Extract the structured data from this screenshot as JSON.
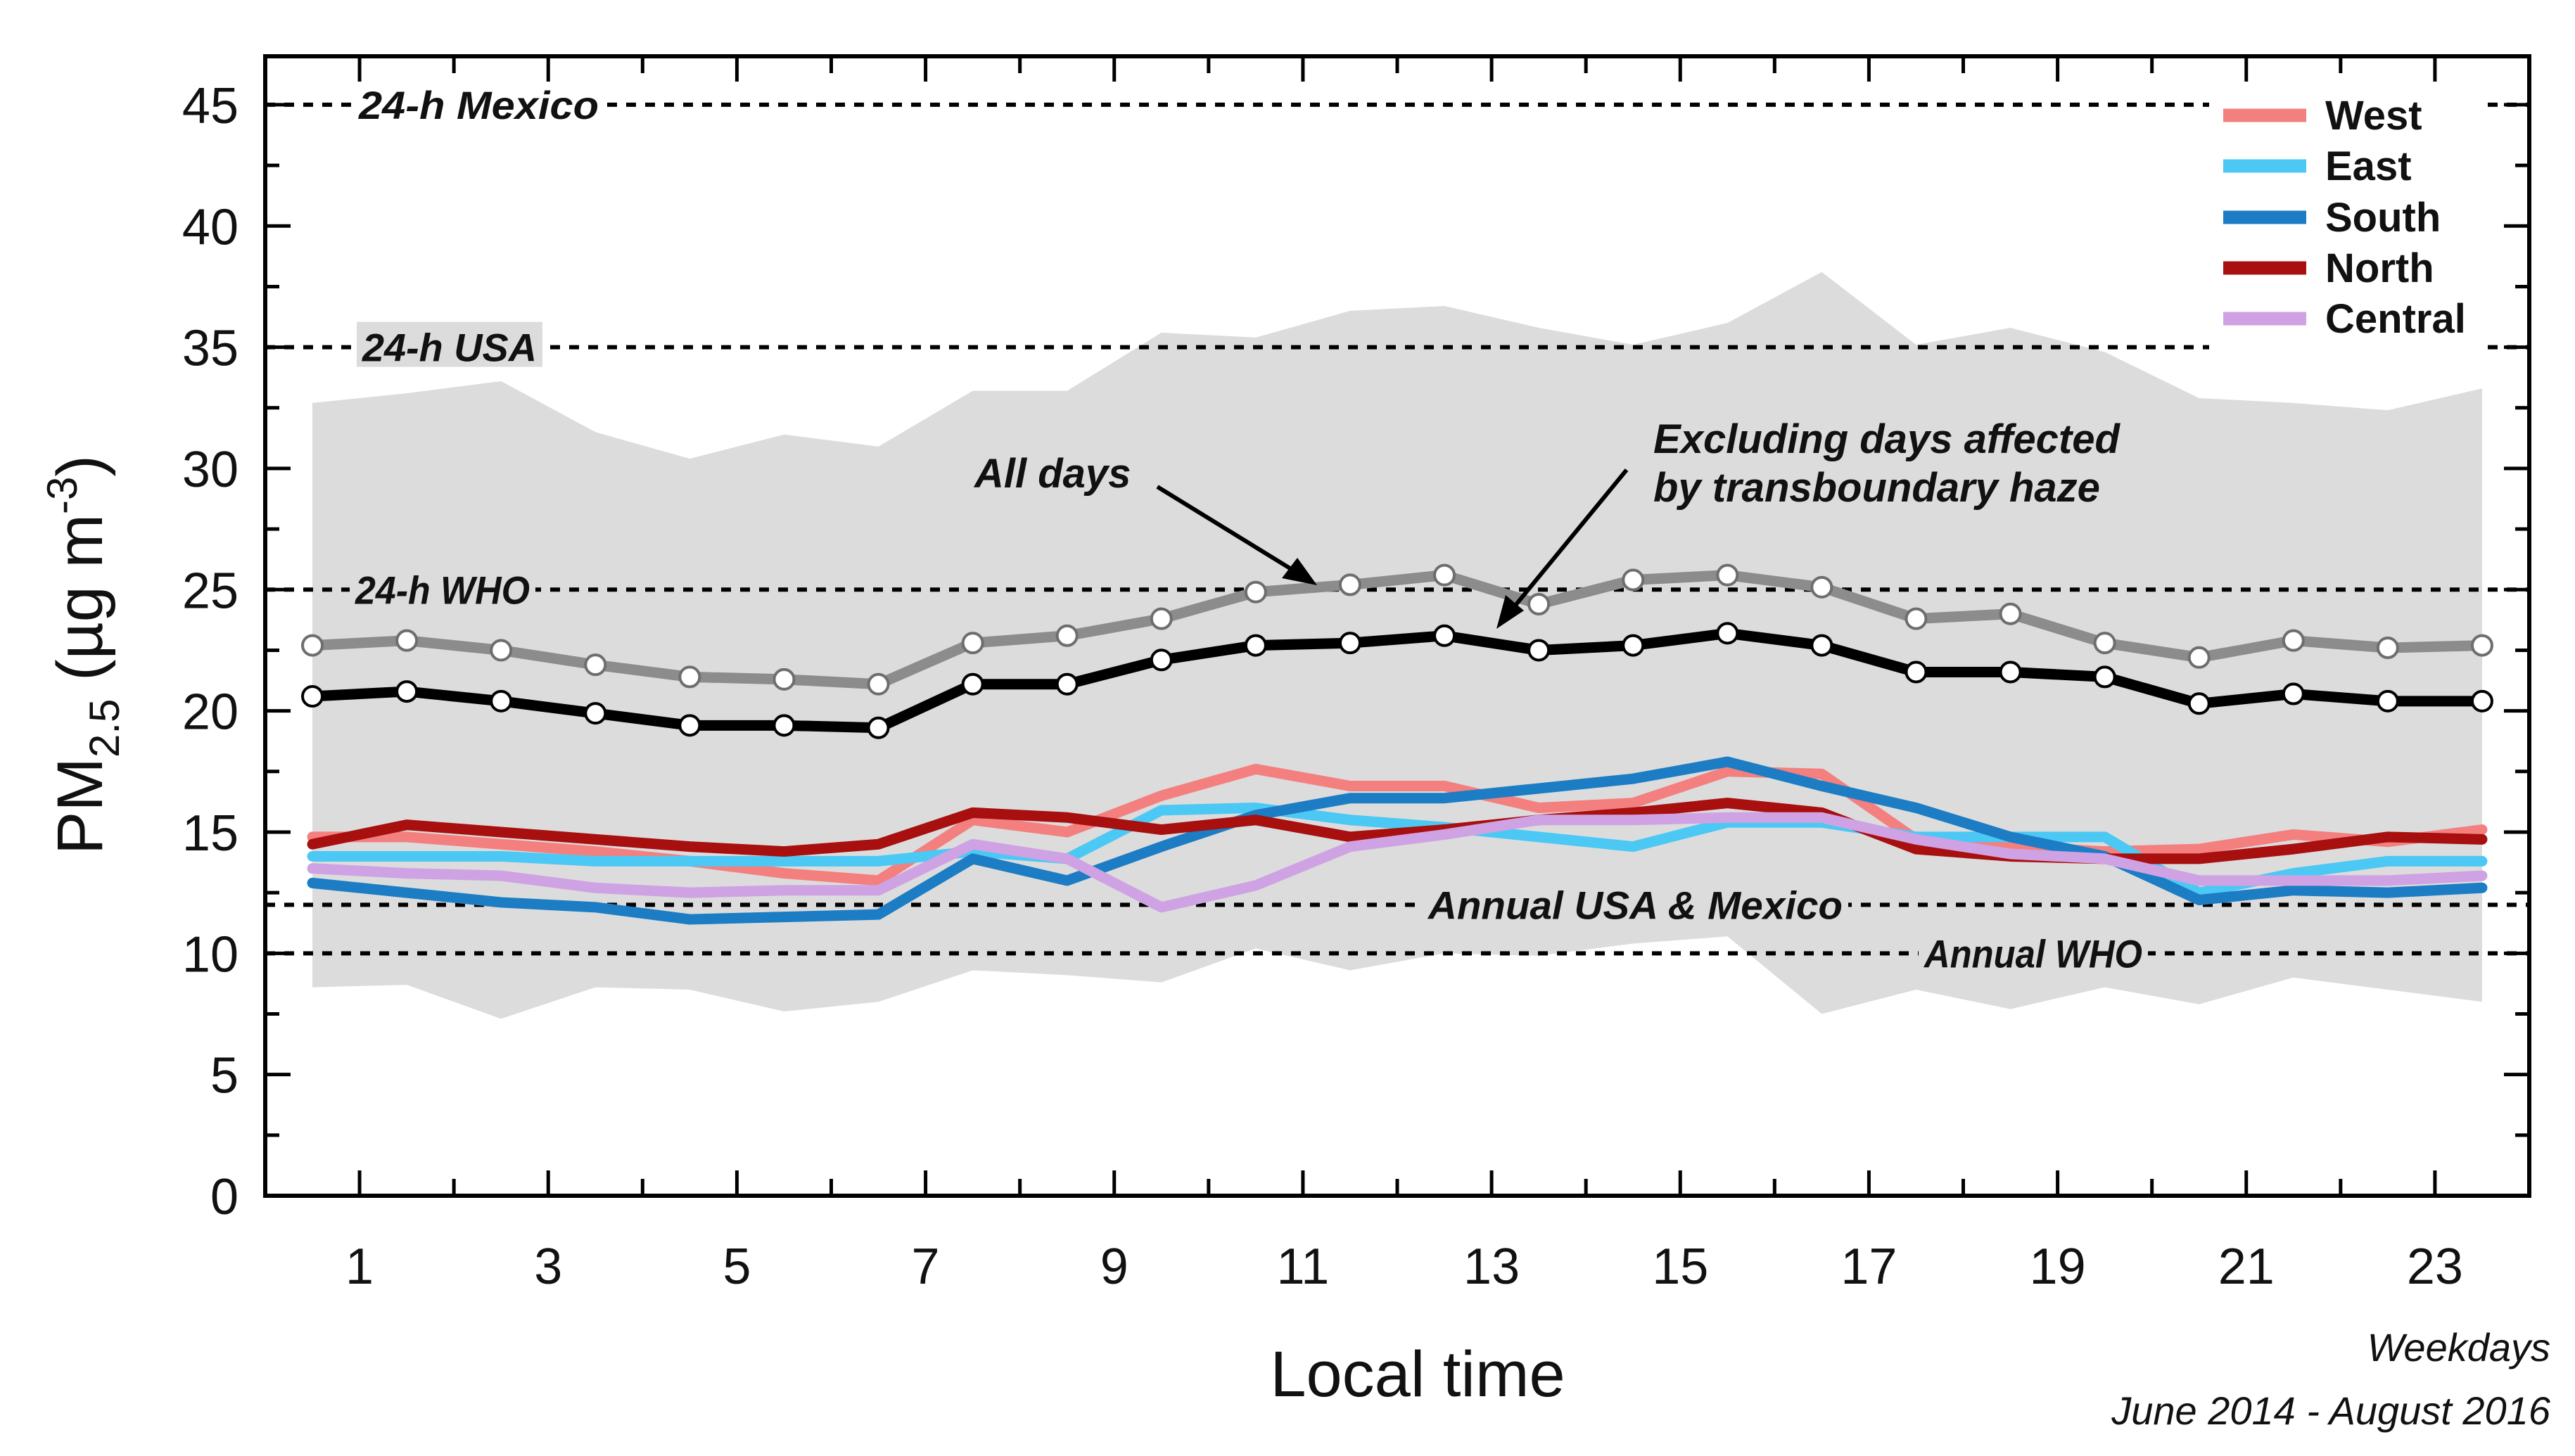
{
  "chart_data": {
    "type": "line",
    "xlabel": "Local time",
    "ylabel": "PM",
    "ylabel_sub": "2.5",
    "ylabel_unit": " (µg m",
    "ylabel_sup": "-3",
    "ylabel_close": ")",
    "xlim": [
      0,
      24
    ],
    "ylim": [
      0,
      47
    ],
    "x_ticks": [
      1,
      3,
      5,
      7,
      9,
      11,
      13,
      15,
      17,
      19,
      21,
      23
    ],
    "y_ticks": [
      0,
      5,
      10,
      15,
      20,
      25,
      30,
      35,
      40,
      45
    ],
    "x": [
      0.5,
      1.5,
      2.5,
      3.5,
      4.5,
      5.5,
      6.5,
      7.5,
      8.5,
      9.5,
      10.5,
      11.5,
      12.5,
      13.5,
      14.5,
      15.5,
      16.5,
      17.5,
      18.5,
      19.5,
      20.5,
      21.5,
      22.5,
      23.5
    ],
    "range_band": {
      "color": "#dcdcdc",
      "upper": [
        32.7,
        33.1,
        33.6,
        31.5,
        30.4,
        31.4,
        30.9,
        33.2,
        33.2,
        35.6,
        35.4,
        36.5,
        36.7,
        35.8,
        35.1,
        36.0,
        38.1,
        35.1,
        35.8,
        34.8,
        32.9,
        32.7,
        32.4,
        33.3
      ],
      "lower": [
        8.6,
        8.7,
        7.3,
        8.6,
        8.5,
        7.6,
        8.0,
        9.3,
        9.1,
        8.8,
        10.2,
        9.3,
        10.0,
        9.9,
        10.4,
        10.7,
        7.5,
        8.5,
        7.7,
        8.6,
        7.9,
        9.0,
        8.5,
        8.0
      ]
    },
    "reference_lines": [
      {
        "value": 45,
        "label": "24-h Mexico"
      },
      {
        "value": 35,
        "label": "24-h USA"
      },
      {
        "value": 25,
        "label": "24-h WHO"
      },
      {
        "value": 12,
        "label": "Annual USA & Mexico"
      },
      {
        "value": 10,
        "label": "Annual WHO"
      }
    ],
    "series": [
      {
        "name": "West",
        "color": "#f47f7f",
        "values": [
          14.8,
          14.8,
          14.5,
          14.2,
          13.8,
          13.3,
          13.0,
          15.5,
          15.0,
          16.5,
          17.6,
          16.9,
          16.9,
          16.0,
          16.2,
          17.5,
          17.4,
          14.7,
          14.4,
          14.2,
          14.3,
          14.9,
          14.6,
          15.1
        ]
      },
      {
        "name": "East",
        "color": "#4cc8f4",
        "values": [
          14.0,
          14.0,
          14.0,
          13.8,
          13.8,
          13.8,
          13.8,
          14.2,
          13.9,
          15.9,
          16.0,
          15.5,
          15.2,
          14.8,
          14.4,
          15.4,
          15.4,
          14.8,
          14.8,
          14.8,
          12.5,
          13.3,
          13.8,
          13.8
        ]
      },
      {
        "name": "South",
        "color": "#1c7dc4",
        "values": [
          12.9,
          12.5,
          12.1,
          11.9,
          11.4,
          11.5,
          11.6,
          13.9,
          13.0,
          14.4,
          15.7,
          16.4,
          16.4,
          16.8,
          17.2,
          17.9,
          16.9,
          16.0,
          14.8,
          14.0,
          12.2,
          12.6,
          12.5,
          12.7
        ]
      },
      {
        "name": "North",
        "color": "#a80f0f",
        "values": [
          14.5,
          15.3,
          15.0,
          14.7,
          14.4,
          14.2,
          14.5,
          15.8,
          15.6,
          15.1,
          15.5,
          14.8,
          15.1,
          15.5,
          15.8,
          16.2,
          15.8,
          14.3,
          14.0,
          13.9,
          13.9,
          14.3,
          14.8,
          14.7
        ]
      },
      {
        "name": "Central",
        "color": "#cfa2e4",
        "values": [
          13.5,
          13.3,
          13.2,
          12.7,
          12.5,
          12.6,
          12.6,
          14.5,
          13.9,
          11.9,
          12.8,
          14.4,
          14.9,
          15.5,
          15.5,
          15.6,
          15.6,
          14.7,
          14.1,
          13.9,
          13.0,
          13.0,
          13.0,
          13.2
        ]
      }
    ],
    "marked_series": [
      {
        "name": "All days",
        "color": "#8c8c8c",
        "values": [
          22.7,
          22.9,
          22.5,
          21.9,
          21.4,
          21.3,
          21.1,
          22.8,
          23.1,
          23.8,
          24.9,
          25.2,
          25.6,
          24.4,
          25.4,
          25.6,
          25.1,
          23.8,
          24.0,
          22.8,
          22.2,
          22.9,
          22.6,
          22.7
        ]
      },
      {
        "name": "Excluding days affected by transboundary haze",
        "color": "#000000",
        "values": [
          20.6,
          20.8,
          20.4,
          19.9,
          19.4,
          19.4,
          19.3,
          21.1,
          21.1,
          22.1,
          22.7,
          22.8,
          23.1,
          22.5,
          22.7,
          23.2,
          22.7,
          21.6,
          21.6,
          21.4,
          20.3,
          20.7,
          20.4,
          20.4
        ]
      }
    ],
    "annotations": [
      {
        "text": "All days"
      },
      {
        "lines": [
          "Excluding days affected",
          "by transboundary haze"
        ]
      }
    ],
    "legend_position": "top-right",
    "footnote": [
      "Weekdays",
      "June 2014 - August 2016"
    ]
  }
}
